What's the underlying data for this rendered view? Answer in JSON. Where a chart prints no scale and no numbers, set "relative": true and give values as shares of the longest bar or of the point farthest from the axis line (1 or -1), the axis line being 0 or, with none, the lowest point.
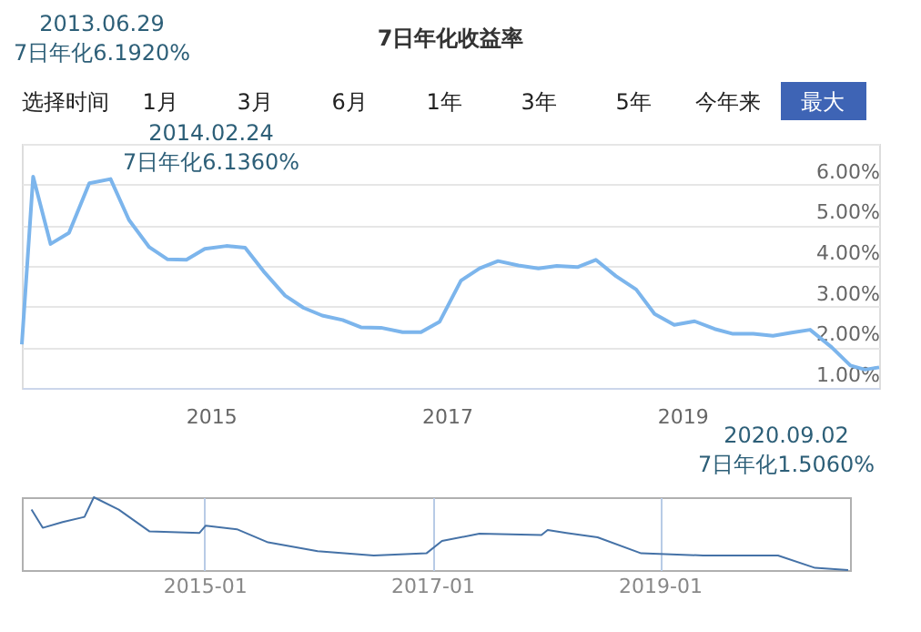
{
  "chart_data": [
    {
      "type": "line",
      "title": "7日年化收益率",
      "annotations": [
        "选择时间",
        "1月",
        "3月",
        "6月",
        "1年",
        "3年",
        "5年",
        "今年来",
        "最大",
        "2013.06.29\n7日年化6.1920%",
        "2014.02.24\n7日年化6.1360%",
        "2020.09.02\n7日年化1.5060%"
      ],
      "x": [
        "2013-05-25",
        "2013-06-29",
        "2013-08-22",
        "2013-10-18",
        "2013-12-20",
        "2014-02-24",
        "2014-04-22",
        "2014-06-24",
        "2014-08-20",
        "2014-10-17",
        "2014-12-13",
        "2015-02-18",
        "2015-04-17",
        "2015-06-13",
        "2015-08-19",
        "2015-10-15",
        "2015-12-12",
        "2016-02-13",
        "2016-04-10",
        "2016-06-11",
        "2016-08-17",
        "2016-10-13",
        "2016-12-10",
        "2017-02-14",
        "2017-04-13",
        "2017-06-09",
        "2017-08-11",
        "2017-10-12",
        "2017-12-08",
        "2018-02-10",
        "2018-04-08",
        "2018-06-09",
        "2018-08-11",
        "2018-10-07",
        "2018-12-07",
        "2019-02-08",
        "2019-04-11",
        "2019-06-07",
        "2019-08-09",
        "2019-10-09",
        "2019-12-06",
        "2020-02-01",
        "2020-04-08",
        "2020-06-05",
        "2020-07-20",
        "2020-09-02"
      ],
      "values": [
        2.07,
        6.192,
        4.54,
        4.81,
        6.03,
        6.136,
        5.13,
        4.46,
        4.16,
        4.15,
        4.42,
        4.49,
        4.45,
        3.87,
        3.27,
        2.97,
        2.78,
        2.67,
        2.49,
        2.48,
        2.37,
        2.37,
        2.63,
        3.64,
        3.94,
        4.12,
        4.01,
        3.94,
        4.0,
        3.97,
        4.15,
        3.75,
        3.42,
        2.82,
        2.55,
        2.64,
        2.45,
        2.33,
        2.33,
        2.28,
        2.36,
        2.43,
        2.0,
        1.55,
        1.45,
        1.506
      ],
      "color": "#7cb5ec",
      "xlim": [
        "2013-05-25",
        "2020-09-02"
      ],
      "xticks": [
        "2015",
        "2017",
        "2019"
      ],
      "ylim": [
        1,
        7
      ],
      "yticks": [
        {
          "value": 1,
          "label": "1.00%"
        },
        {
          "value": 2,
          "label": "2.00%"
        },
        {
          "value": 3,
          "label": "3.00%"
        },
        {
          "value": 4,
          "label": "4.00%"
        },
        {
          "value": 5,
          "label": "5.00%"
        },
        {
          "value": 6,
          "label": "6.00%"
        },
        {
          "value": 7,
          "label": null
        }
      ],
      "grid": "y"
    },
    {
      "type": "line",
      "relative": true,
      "x": [
        "2013-06-25",
        "2013-07-31",
        "2013-10-03",
        "2013-12-12",
        "2014-01-11",
        "2014-04-01",
        "2014-07-09",
        "2014-12-16",
        "2015-01-05",
        "2015-04-15",
        "2015-07-24",
        "2015-12-30",
        "2016-06-27",
        "2016-12-13",
        "2017-02-01",
        "2017-06-01",
        "2017-12-17",
        "2018-01-06",
        "2018-03-07",
        "2018-06-15",
        "2018-11-02",
        "2019-05-20",
        "2020-01-15",
        "2020-05-13",
        "2020-08-27"
      ],
      "values": [
        0.83,
        0.58,
        0.66,
        0.73,
        1.0,
        0.83,
        0.53,
        0.51,
        0.61,
        0.56,
        0.38,
        0.26,
        0.2,
        0.23,
        0.4,
        0.5,
        0.48,
        0.55,
        0.51,
        0.45,
        0.23,
        0.2,
        0.2,
        0.03,
        0
      ],
      "color": "#4572a7",
      "xlim": [
        "2013-05-25",
        "2020-09-02"
      ],
      "xticks": [
        "2015-01",
        "2017-01",
        "2019-01"
      ],
      "grid": "x"
    }
  ]
}
